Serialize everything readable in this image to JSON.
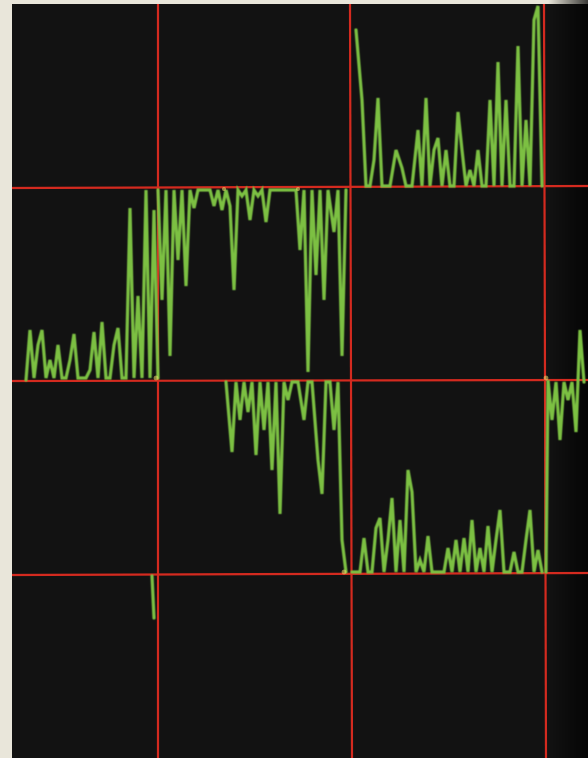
{
  "colors": {
    "paper": "#e9e6da",
    "screen": "#121212",
    "grid": "#d42a1f",
    "trace": "#7bc043"
  }
}
